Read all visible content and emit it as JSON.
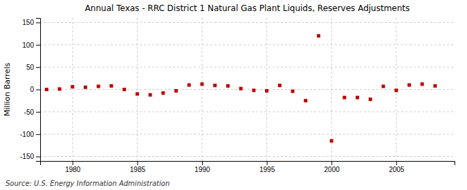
{
  "chart_data": {
    "type": "scatter",
    "title": "Annual Texas - RRC District 1 Natural Gas Plant Liquids, Reserves Adjustments",
    "ylabel": "Million Barrels",
    "annotations": [
      "Source: U.S. Energy Information Administration"
    ],
    "x": [
      1978,
      1979,
      1980,
      1981,
      1982,
      1983,
      1984,
      1985,
      1986,
      1987,
      1988,
      1989,
      1990,
      1991,
      1992,
      1993,
      1994,
      1995,
      1996,
      1997,
      1998,
      1999,
      2000,
      2001,
      2002,
      2003,
      2004,
      2005,
      2006,
      2007,
      2008
    ],
    "values": [
      0,
      1,
      6,
      5,
      7,
      8,
      0,
      -10,
      -12,
      -8,
      -3,
      10,
      12,
      9,
      8,
      2,
      -2,
      -3,
      9,
      -4,
      -25,
      120,
      -115,
      -18,
      -18,
      -22,
      7,
      -2,
      10,
      12,
      8
    ],
    "color": "#c00000",
    "marker": "square",
    "grid": true,
    "xlim": [
      1977.5,
      2009.5
    ],
    "ylim": [
      -160,
      160
    ],
    "xticks": [
      1980,
      1985,
      1990,
      1995,
      2000,
      2005
    ],
    "yticks": [
      -150,
      -100,
      -50,
      0,
      50,
      100,
      150
    ]
  }
}
